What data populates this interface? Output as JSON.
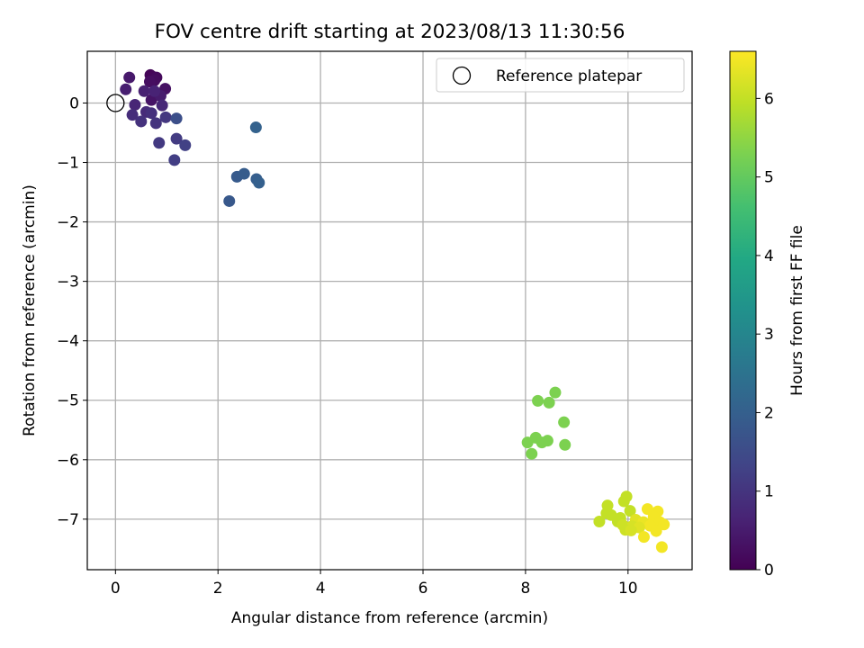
{
  "chart_data": {
    "type": "scatter",
    "title": "FOV centre drift starting at 2023/08/13 11:30:56",
    "xlabel": "Angular distance from reference (arcmin)",
    "ylabel": "Rotation from reference (arcmin)",
    "xlim": [
      -0.55,
      11.25
    ],
    "ylim": [
      -7.85,
      0.87
    ],
    "xticks": [
      0,
      2,
      4,
      6,
      8,
      10
    ],
    "xtick_labels": [
      "0",
      "2",
      "4",
      "6",
      "8",
      "10"
    ],
    "yticks": [
      0,
      -1,
      -2,
      -3,
      -4,
      -5,
      -6,
      -7
    ],
    "ytick_labels": [
      "0",
      "−1",
      "−2",
      "−3",
      "−4",
      "−5",
      "−6",
      "−7"
    ],
    "grid": true,
    "legend": {
      "placement": "top-right",
      "entries": [
        "Reference platepar"
      ]
    },
    "colorbar": {
      "label": "Hours from first FF file",
      "colormap": "viridis",
      "range": [
        0,
        6.6
      ],
      "ticks": [
        0,
        1,
        2,
        3,
        4,
        5,
        6
      ],
      "tick_labels": [
        "0",
        "1",
        "2",
        "3",
        "4",
        "5",
        "6"
      ]
    },
    "reference": {
      "name": "Reference platepar",
      "x": 0,
      "y": 0
    },
    "series": [
      {
        "points": [
          {
            "x": 0.68,
            "y": 0.47,
            "h": 0.05
          },
          {
            "x": 0.73,
            "y": 0.44,
            "h": 0.1
          },
          {
            "x": 0.8,
            "y": 0.43,
            "h": 0.15
          },
          {
            "x": 0.76,
            "y": 0.38,
            "h": 0.2
          },
          {
            "x": 0.67,
            "y": 0.36,
            "h": 0.25
          },
          {
            "x": 0.97,
            "y": 0.24,
            "h": 0.3
          },
          {
            "x": 0.7,
            "y": 0.05,
            "h": 0.35
          },
          {
            "x": 0.27,
            "y": 0.43,
            "h": 0.45
          },
          {
            "x": 0.88,
            "y": 0.12,
            "h": 0.5
          },
          {
            "x": 0.2,
            "y": 0.23,
            "h": 0.55
          },
          {
            "x": 0.56,
            "y": 0.2,
            "h": 0.6
          },
          {
            "x": 0.76,
            "y": 0.2,
            "h": 0.65
          },
          {
            "x": 0.38,
            "y": -0.03,
            "h": 0.7
          },
          {
            "x": 0.91,
            "y": -0.04,
            "h": 0.75
          },
          {
            "x": 0.6,
            "y": -0.15,
            "h": 0.8
          },
          {
            "x": 0.33,
            "y": -0.2,
            "h": 0.85
          },
          {
            "x": 0.7,
            "y": -0.17,
            "h": 0.9
          },
          {
            "x": 0.5,
            "y": -0.31,
            "h": 0.95
          },
          {
            "x": 0.79,
            "y": -0.34,
            "h": 1.0
          },
          {
            "x": 0.98,
            "y": -0.24,
            "h": 1.05
          },
          {
            "x": 0.85,
            "y": -0.67,
            "h": 1.1
          },
          {
            "x": 1.19,
            "y": -0.6,
            "h": 1.15
          },
          {
            "x": 1.15,
            "y": -0.96,
            "h": 1.2
          },
          {
            "x": 1.36,
            "y": -0.71,
            "h": 1.25
          },
          {
            "x": 1.19,
            "y": -0.26,
            "h": 1.6
          },
          {
            "x": 2.22,
            "y": -1.65,
            "h": 1.8
          },
          {
            "x": 2.37,
            "y": -1.24,
            "h": 1.85
          },
          {
            "x": 2.51,
            "y": -1.19,
            "h": 1.9
          },
          {
            "x": 2.75,
            "y": -1.28,
            "h": 1.95
          },
          {
            "x": 2.8,
            "y": -1.34,
            "h": 2.0
          },
          {
            "x": 2.74,
            "y": -0.41,
            "h": 2.05
          },
          {
            "x": 8.58,
            "y": -4.87,
            "h": 5.3
          },
          {
            "x": 8.24,
            "y": -5.01,
            "h": 5.3
          },
          {
            "x": 8.46,
            "y": -5.04,
            "h": 5.3
          },
          {
            "x": 8.75,
            "y": -5.37,
            "h": 5.3
          },
          {
            "x": 8.2,
            "y": -5.63,
            "h": 5.3
          },
          {
            "x": 8.43,
            "y": -5.68,
            "h": 5.3
          },
          {
            "x": 8.04,
            "y": -5.71,
            "h": 5.3
          },
          {
            "x": 8.32,
            "y": -5.71,
            "h": 5.3
          },
          {
            "x": 8.77,
            "y": -5.75,
            "h": 5.3
          },
          {
            "x": 8.12,
            "y": -5.9,
            "h": 5.3
          },
          {
            "x": 9.97,
            "y": -6.62,
            "h": 6.0
          },
          {
            "x": 9.92,
            "y": -6.7,
            "h": 6.0
          },
          {
            "x": 9.6,
            "y": -6.77,
            "h": 6.0
          },
          {
            "x": 10.38,
            "y": -6.83,
            "h": 6.5
          },
          {
            "x": 10.58,
            "y": -6.87,
            "h": 6.5
          },
          {
            "x": 10.04,
            "y": -6.86,
            "h": 6.0
          },
          {
            "x": 9.58,
            "y": -6.9,
            "h": 6.0
          },
          {
            "x": 9.67,
            "y": -6.93,
            "h": 6.0
          },
          {
            "x": 9.85,
            "y": -6.98,
            "h": 6.0
          },
          {
            "x": 10.5,
            "y": -6.96,
            "h": 6.5
          },
          {
            "x": 10.15,
            "y": -7.01,
            "h": 6.3
          },
          {
            "x": 9.44,
            "y": -7.04,
            "h": 6.0
          },
          {
            "x": 9.8,
            "y": -7.04,
            "h": 6.0
          },
          {
            "x": 10.3,
            "y": -7.05,
            "h": 6.4
          },
          {
            "x": 10.62,
            "y": -7.05,
            "h": 6.5
          },
          {
            "x": 10.7,
            "y": -7.09,
            "h": 6.5
          },
          {
            "x": 10.43,
            "y": -7.11,
            "h": 6.5
          },
          {
            "x": 9.9,
            "y": -7.1,
            "h": 6.1
          },
          {
            "x": 10.08,
            "y": -7.12,
            "h": 6.2
          },
          {
            "x": 10.22,
            "y": -7.14,
            "h": 6.3
          },
          {
            "x": 9.95,
            "y": -7.18,
            "h": 6.1
          },
          {
            "x": 10.06,
            "y": -7.19,
            "h": 6.2
          },
          {
            "x": 10.55,
            "y": -7.2,
            "h": 6.5
          },
          {
            "x": 10.31,
            "y": -7.3,
            "h": 6.5
          },
          {
            "x": 10.66,
            "y": -7.47,
            "h": 6.5
          }
        ]
      }
    ]
  }
}
